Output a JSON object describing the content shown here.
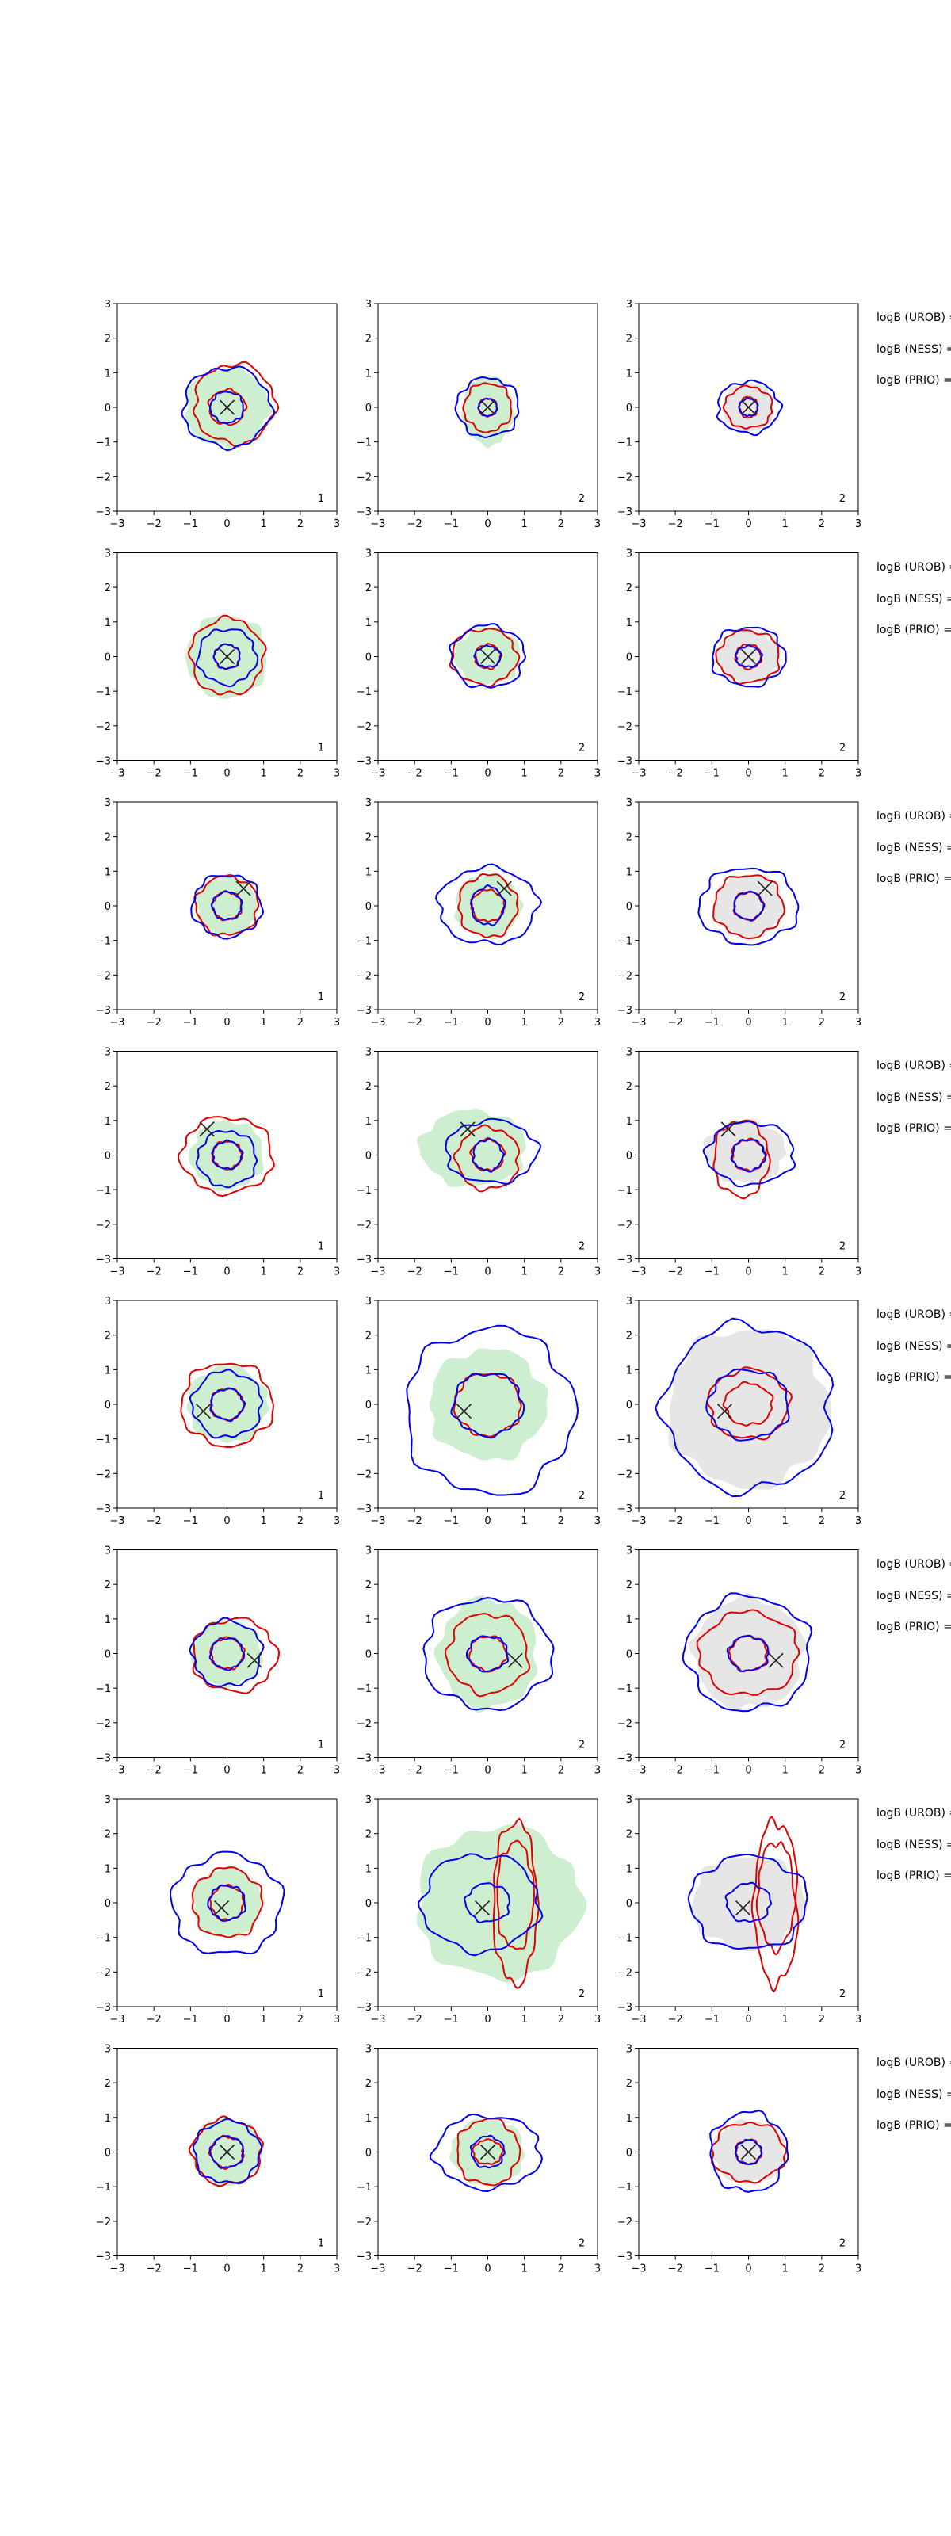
{
  "chart_data": {
    "type": "contour-grid",
    "rows": 8,
    "cols": 3,
    "xlim": [
      -3,
      3
    ],
    "ylim": [
      -3,
      3
    ],
    "xticks": [
      -3,
      -2,
      -1,
      0,
      1,
      2,
      3
    ],
    "yticks": [
      -3,
      -2,
      -1,
      0,
      1,
      2,
      3
    ],
    "side_labels": [
      "logB (UROB) =",
      "logB (NESS) =",
      "logB (PRIO) ="
    ],
    "colors": {
      "blue": "#0000ee",
      "red": "#e00000",
      "green_fill": "#cdeecf",
      "gray_fill": "#e6e6e6",
      "cross": "#222222"
    },
    "column_fill": [
      "green",
      "green",
      "gray"
    ],
    "panel_numbers": [
      "1",
      "2",
      "2"
    ],
    "rows_data": [
      {
        "cross": [
          0,
          0
        ],
        "panels": [
          {
            "blue": [
              [
                0,
                0,
                1.2,
                1.15
              ]
            ],
            "red": [
              [
                0,
                0,
                0.5,
                0.5
              ],
              [
                0.2,
                0.1,
                1.1,
                1.15
              ]
            ],
            "fill": [
              0,
              0,
              1.15,
              1.15
            ],
            "inner_blue": [
              0,
              0,
              0.45,
              0.45
            ]
          },
          {
            "blue": [
              [
                0,
                0,
                0.85,
                0.85
              ]
            ],
            "red": [
              [
                0,
                0,
                0.25,
                0.25
              ],
              [
                0,
                0,
                0.65,
                0.7
              ]
            ],
            "fill": [
              0,
              -0.1,
              0.7,
              1.0
            ],
            "inner_blue": [
              0,
              0,
              0.25,
              0.25
            ]
          },
          {
            "blue": [
              [
                0,
                0,
                0.85,
                0.75
              ]
            ],
            "red": [
              [
                0,
                0,
                0.25,
                0.3
              ],
              [
                0,
                0,
                0.65,
                0.6
              ]
            ],
            "fill": [
              0,
              0,
              0.7,
              0.7
            ],
            "inner_blue": [
              0,
              0,
              0.25,
              0.25
            ]
          }
        ]
      },
      {
        "cross": [
          0,
          0
        ],
        "panels": [
          {
            "blue": [
              [
                0,
                0,
                0.8,
                0.8
              ]
            ],
            "red": [
              [
                0,
                0,
                0.35,
                0.35
              ],
              [
                0,
                0,
                1.0,
                1.1
              ]
            ],
            "fill": [
              0,
              0,
              1.1,
              1.2
            ],
            "inner_blue": [
              0,
              0,
              0.35,
              0.35
            ]
          },
          {
            "blue": [
              [
                0,
                0,
                1.0,
                0.9
              ]
            ],
            "red": [
              [
                0,
                0,
                0.35,
                0.35
              ],
              [
                -0.1,
                0,
                0.9,
                0.8
              ]
            ],
            "fill": [
              0,
              0,
              0.9,
              0.8
            ],
            "inner_blue": [
              0,
              0,
              0.35,
              0.3
            ]
          },
          {
            "blue": [
              [
                0,
                0,
                1.0,
                0.85
              ]
            ],
            "red": [
              [
                0,
                0,
                0.35,
                0.35
              ],
              [
                0,
                0,
                0.85,
                0.75
              ]
            ],
            "fill": [
              0,
              0,
              0.85,
              0.75
            ],
            "inner_blue": [
              0,
              0,
              0.35,
              0.3
            ]
          }
        ]
      },
      {
        "cross": [
          0.45,
          0.5
        ],
        "panels": [
          {
            "blue": [
              [
                0,
                0,
                0.95,
                0.9
              ]
            ],
            "red": [
              [
                0,
                0,
                0.4,
                0.4
              ],
              [
                0,
                0,
                0.85,
                0.85
              ]
            ],
            "fill": [
              0,
              0,
              0.85,
              0.85
            ],
            "inner_blue": [
              0,
              0,
              0.4,
              0.4
            ]
          },
          {
            "blue": [
              [
                0,
                0,
                1.35,
                1.1
              ]
            ],
            "red": [
              [
                0,
                0,
                0.45,
                0.45
              ],
              [
                0,
                0,
                0.8,
                0.9
              ]
            ],
            "fill": [
              0,
              0,
              0.9,
              0.9
            ],
            "inner_blue": [
              0,
              0,
              0.45,
              0.55
            ]
          },
          {
            "blue": [
              [
                0,
                0,
                1.35,
                1.1
              ]
            ],
            "red": [
              [
                0,
                0,
                0.4,
                0.4
              ],
              [
                0,
                0,
                0.95,
                0.9
              ]
            ],
            "fill": [
              0,
              0,
              0.95,
              0.9
            ],
            "inner_blue": [
              0,
              0,
              0.4,
              0.4
            ]
          }
        ]
      },
      {
        "cross": [
          -0.55,
          0.75
        ],
        "panels": [
          {
            "blue": [
              [
                0,
                -0.1,
                0.8,
                0.8
              ]
            ],
            "red": [
              [
                0,
                0,
                0.4,
                0.4
              ],
              [
                0,
                0,
                1.25,
                1.1
              ]
            ],
            "fill": [
              0,
              0,
              1.0,
              1.0
            ],
            "inner_blue": [
              0,
              0,
              0.4,
              0.4
            ]
          },
          {
            "blue": [
              [
                0.1,
                0.1,
                1.25,
                0.9
              ]
            ],
            "red": [
              [
                0,
                -0.1,
                0.85,
                0.9
              ],
              [
                0,
                0,
                0.45,
                0.45
              ]
            ],
            "fill": [
              -0.4,
              0.2,
              1.45,
              1.1
            ],
            "inner_blue": [
              0,
              0,
              0.4,
              0.45
            ]
          },
          {
            "blue": [
              [
                0.05,
                0.05,
                1.2,
                0.9
              ]
            ],
            "red": [
              [
                0,
                0,
                0.45,
                0.45
              ],
              [
                -0.2,
                -0.1,
                0.75,
                1.1
              ]
            ],
            "fill": [
              -0.1,
              0.1,
              1.1,
              0.9
            ],
            "inner_blue": [
              0,
              0,
              0.45,
              0.45
            ]
          }
        ]
      },
      {
        "cross": [
          -0.65,
          -0.2
        ],
        "panels": [
          {
            "blue": [
              [
                0,
                0,
                0.95,
                0.95
              ]
            ],
            "red": [
              [
                0,
                0,
                0.45,
                0.45
              ],
              [
                0,
                0,
                1.25,
                1.2
              ]
            ],
            "fill": [
              0,
              0,
              1.1,
              1.1
            ],
            "inner_blue": [
              0,
              0,
              0.45,
              0.45
            ]
          },
          {
            "blue": [
              [
                0.05,
                -0.2,
                2.3,
                2.4
              ]
            ],
            "red": [
              [
                0,
                0,
                0.9,
                0.9
              ]
            ],
            "fill": [
              0,
              0,
              1.6,
              1.6
            ],
            "inner_blue": [
              0,
              0,
              0.95,
              0.9
            ]
          },
          {
            "blue": [
              [
                0,
                -0.1,
                2.3,
                2.4
              ]
            ],
            "red": [
              [
                0,
                0,
                0.65,
                0.6
              ],
              [
                0,
                0,
                1.1,
                1.0
              ]
            ],
            "fill": [
              0,
              -0.1,
              2.2,
              2.3
            ],
            "inner_blue": [
              0,
              0,
              1.1,
              1.0
            ]
          }
        ]
      },
      {
        "cross": [
          0.75,
          -0.2
        ],
        "panels": [
          {
            "blue": [
              [
                0,
                0,
                0.95,
                0.95
              ]
            ],
            "red": [
              [
                0,
                0,
                0.45,
                0.45
              ],
              [
                0.2,
                -0.05,
                1.15,
                1.05
              ]
            ],
            "fill": [
              0,
              0,
              0.95,
              0.95
            ],
            "inner_blue": [
              0,
              0,
              0.45,
              0.45
            ]
          },
          {
            "blue": [
              [
                0,
                0,
                1.75,
                1.6
              ]
            ],
            "red": [
              [
                0,
                0,
                0.5,
                0.5
              ],
              [
                0,
                0,
                1.1,
                1.15
              ]
            ],
            "fill": [
              0,
              0,
              1.35,
              1.6
            ],
            "inner_blue": [
              0,
              0,
              0.55,
              0.5
            ]
          },
          {
            "blue": [
              [
                0,
                0,
                1.7,
                1.65
              ]
            ],
            "red": [
              [
                0,
                0,
                0.5,
                0.5
              ],
              [
                0,
                0,
                1.35,
                1.2
              ]
            ],
            "fill": [
              0,
              0,
              1.5,
              1.6
            ],
            "inner_blue": [
              0,
              0,
              0.55,
              0.5
            ]
          }
        ]
      },
      {
        "cross": [
          -0.15,
          -0.15
        ],
        "panels": [
          {
            "blue": [
              [
                0,
                -0.05,
                1.5,
                1.45
              ]
            ],
            "red": [
              [
                0,
                0,
                0.45,
                0.5
              ],
              [
                0,
                0,
                0.95,
                1.0
              ]
            ],
            "fill": [
              0,
              0,
              0.95,
              1.0
            ],
            "inner_blue": [
              0,
              0,
              0.5,
              0.5
            ]
          },
          {
            "blue": [
              [
                -0.2,
                0,
                1.6,
                1.4
              ]
            ],
            "red": [
              [
                0.75,
                0.2,
                0.5,
                1.55
              ],
              [
                0.75,
                0,
                0.6,
                2.35
              ]
            ],
            "fill": [
              0.3,
              0,
              2.25,
              2.2
            ],
            "inner_blue": [
              0,
              0,
              0.6,
              0.55
            ]
          },
          {
            "blue": [
              [
                0,
                0,
                1.6,
                1.35
              ]
            ],
            "red": [
              [
                0.75,
                0.2,
                0.5,
                1.55
              ],
              [
                0.75,
                0,
                0.6,
                2.35
              ]
            ],
            "fill": [
              0,
              0,
              1.55,
              1.35
            ],
            "inner_blue": [
              0,
              0,
              0.6,
              0.55
            ]
          }
        ]
      },
      {
        "cross": [
          0,
          0
        ],
        "panels": [
          {
            "blue": [
              [
                0,
                0,
                0.9,
                0.9
              ]
            ],
            "red": [
              [
                0,
                0,
                0.45,
                0.45
              ],
              [
                0,
                0,
                0.95,
                0.95
              ]
            ],
            "fill": [
              0,
              0,
              0.95,
              0.95
            ],
            "inner_blue": [
              0,
              0,
              0.45,
              0.45
            ]
          },
          {
            "blue": [
              [
                0,
                0,
                1.45,
                1.05
              ]
            ],
            "red": [
              [
                0,
                0,
                0.4,
                0.35
              ],
              [
                0,
                0,
                0.85,
                0.95
              ]
            ],
            "fill": [
              0,
              0,
              1.0,
              0.95
            ],
            "inner_blue": [
              0,
              0,
              0.45,
              0.45
            ]
          },
          {
            "blue": [
              [
                0,
                0,
                1.05,
                1.15
              ]
            ],
            "red": [
              [
                0,
                0,
                0.35,
                0.35
              ],
              [
                0,
                0,
                1.0,
                0.85
              ]
            ],
            "fill": [
              0,
              0,
              1.0,
              0.9
            ],
            "inner_blue": [
              0,
              0,
              0.35,
              0.35
            ]
          }
        ]
      }
    ]
  }
}
